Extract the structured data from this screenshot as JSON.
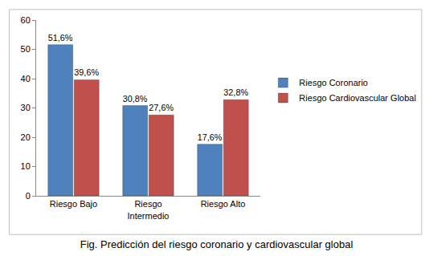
{
  "chart_data": {
    "type": "bar",
    "title": "Fig. Predicción del riesgo coronario y cardiovascular global",
    "categories": [
      "Riesgo Bajo",
      "Riesgo Intermedio",
      "Riesgo Alto"
    ],
    "series": [
      {
        "name": "Riesgo Coronario",
        "color": "#4f81bd",
        "values": [
          51.6,
          30.8,
          17.6
        ],
        "value_labels": [
          "51,6%",
          "30,8%",
          "17,6%"
        ]
      },
      {
        "name": "Riesgo Cardiovascular Global",
        "color": "#c0504d",
        "values": [
          39.6,
          27.6,
          32.8
        ],
        "value_labels": [
          "39,6%",
          "27,6%",
          "32,8%"
        ]
      }
    ],
    "ylim": [
      0,
      60
    ],
    "yticks": [
      0,
      10,
      20,
      30,
      40,
      50,
      60
    ],
    "grid": false,
    "legend": "right",
    "data_labels": true
  }
}
